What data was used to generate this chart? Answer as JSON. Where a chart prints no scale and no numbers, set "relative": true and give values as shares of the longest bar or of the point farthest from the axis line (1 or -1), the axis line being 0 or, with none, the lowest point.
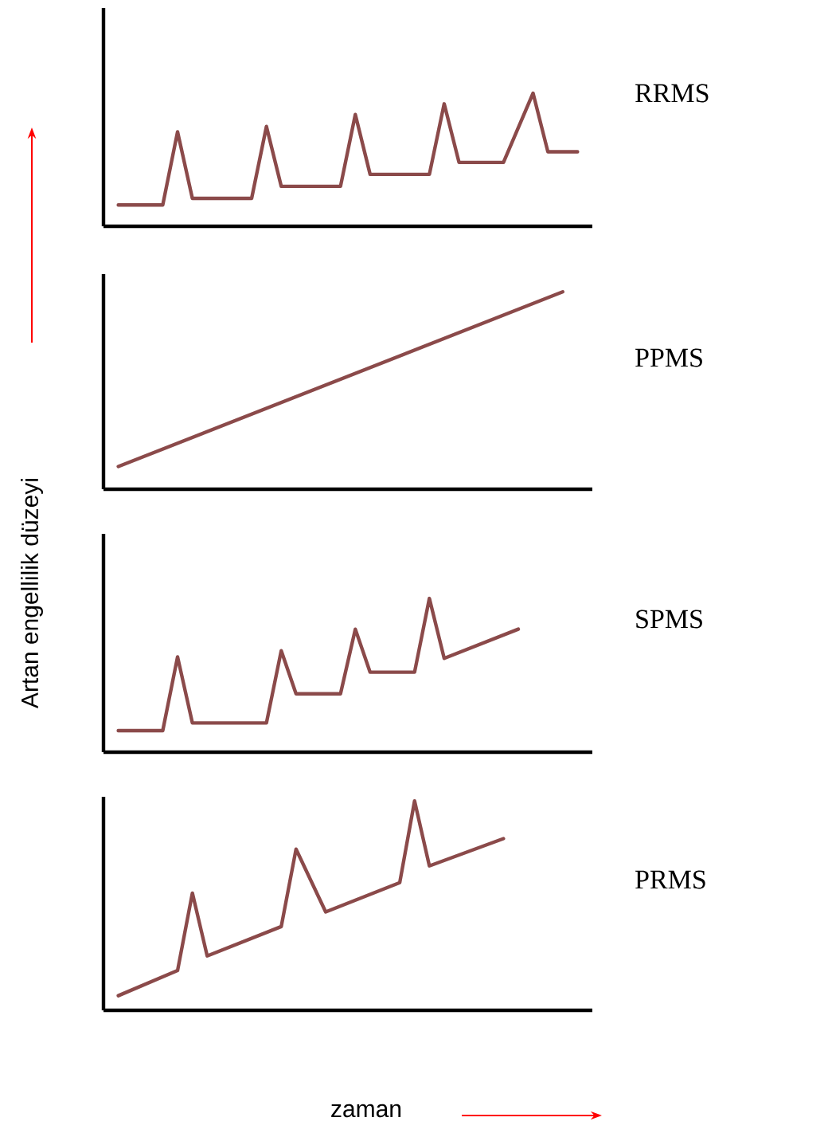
{
  "chart_data": [
    {
      "type": "line",
      "relative": true,
      "tick_labels": false,
      "line_style": "solid",
      "marker": "none",
      "categories": [
        null,
        null,
        null,
        null,
        null,
        null,
        null,
        null,
        null,
        null,
        null,
        null,
        null,
        null,
        null,
        null,
        null,
        null,
        null,
        null,
        null,
        null,
        null,
        null,
        null,
        null,
        null,
        null,
        null,
        null,
        null,
        null,
        null,
        null
      ],
      "series": [
        {
          "name": "RRMS",
          "color": "#8b4a4a",
          "values": [
            null,
            0.16,
            null,
            null,
            0.16,
            0.71,
            0.21,
            null,
            null,
            null,
            0.21,
            0.75,
            0.3,
            null,
            null,
            null,
            0.3,
            0.84,
            0.39,
            null,
            null,
            null,
            0.39,
            0.92,
            0.48,
            null,
            null,
            0.48,
            null,
            1,
            0.56,
            null,
            0.56,
            null
          ]
        }
      ]
    },
    {
      "type": "line",
      "relative": true,
      "tick_labels": false,
      "line_style": "solid",
      "marker": "none",
      "categories": [
        null,
        null,
        null,
        null,
        null,
        null,
        null,
        null,
        null,
        null,
        null,
        null,
        null,
        null,
        null,
        null,
        null,
        null,
        null,
        null,
        null,
        null,
        null,
        null,
        null,
        null,
        null,
        null,
        null,
        null,
        null,
        null,
        null,
        null
      ],
      "series": [
        {
          "name": "PPMS",
          "color": "#8b4a4a",
          "values": [
            null,
            0.115,
            null,
            null,
            null,
            null,
            null,
            null,
            null,
            null,
            null,
            null,
            null,
            null,
            null,
            null,
            null,
            null,
            null,
            null,
            null,
            null,
            null,
            null,
            null,
            null,
            null,
            null,
            null,
            null,
            null,
            1,
            null,
            null
          ]
        }
      ]
    },
    {
      "type": "line",
      "relative": true,
      "tick_labels": false,
      "line_style": "solid",
      "marker": "none",
      "categories": [
        null,
        null,
        null,
        null,
        null,
        null,
        null,
        null,
        null,
        null,
        null,
        null,
        null,
        null,
        null,
        null,
        null,
        null,
        null,
        null,
        null,
        null,
        null,
        null,
        null,
        null,
        null,
        null,
        null,
        null,
        null,
        null,
        null,
        null
      ],
      "series": [
        {
          "name": "SPMS",
          "color": "#8b4a4a",
          "values": [
            null,
            0.14,
            null,
            null,
            0.14,
            0.62,
            0.19,
            null,
            null,
            null,
            null,
            0.19,
            0.66,
            0.38,
            null,
            null,
            0.38,
            0.8,
            0.52,
            null,
            null,
            0.52,
            1,
            0.61,
            null,
            null,
            null,
            null,
            0.8,
            null,
            null,
            null,
            null,
            null
          ]
        }
      ]
    },
    {
      "type": "line",
      "relative": true,
      "tick_labels": false,
      "line_style": "solid",
      "marker": "none",
      "categories": [
        null,
        null,
        null,
        null,
        null,
        null,
        null,
        null,
        null,
        null,
        null,
        null,
        null,
        null,
        null,
        null,
        null,
        null,
        null,
        null,
        null,
        null,
        null,
        null,
        null,
        null,
        null,
        null,
        null,
        null,
        null,
        null,
        null,
        null
      ],
      "series": [
        {
          "name": "PRMS",
          "color": "#8b4a4a",
          "values": [
            null,
            0.07,
            null,
            null,
            null,
            0.19,
            0.56,
            0.26,
            null,
            null,
            null,
            null,
            0.4,
            0.77,
            null,
            0.47,
            null,
            null,
            null,
            null,
            0.61,
            1,
            0.69,
            null,
            null,
            null,
            null,
            0.82,
            null,
            null,
            null,
            null,
            null,
            null
          ]
        }
      ]
    },
    {
      "type": "other",
      "ylabel": "Artan engellilik düzeyi",
      "xlabel": "zaman"
    }
  ]
}
